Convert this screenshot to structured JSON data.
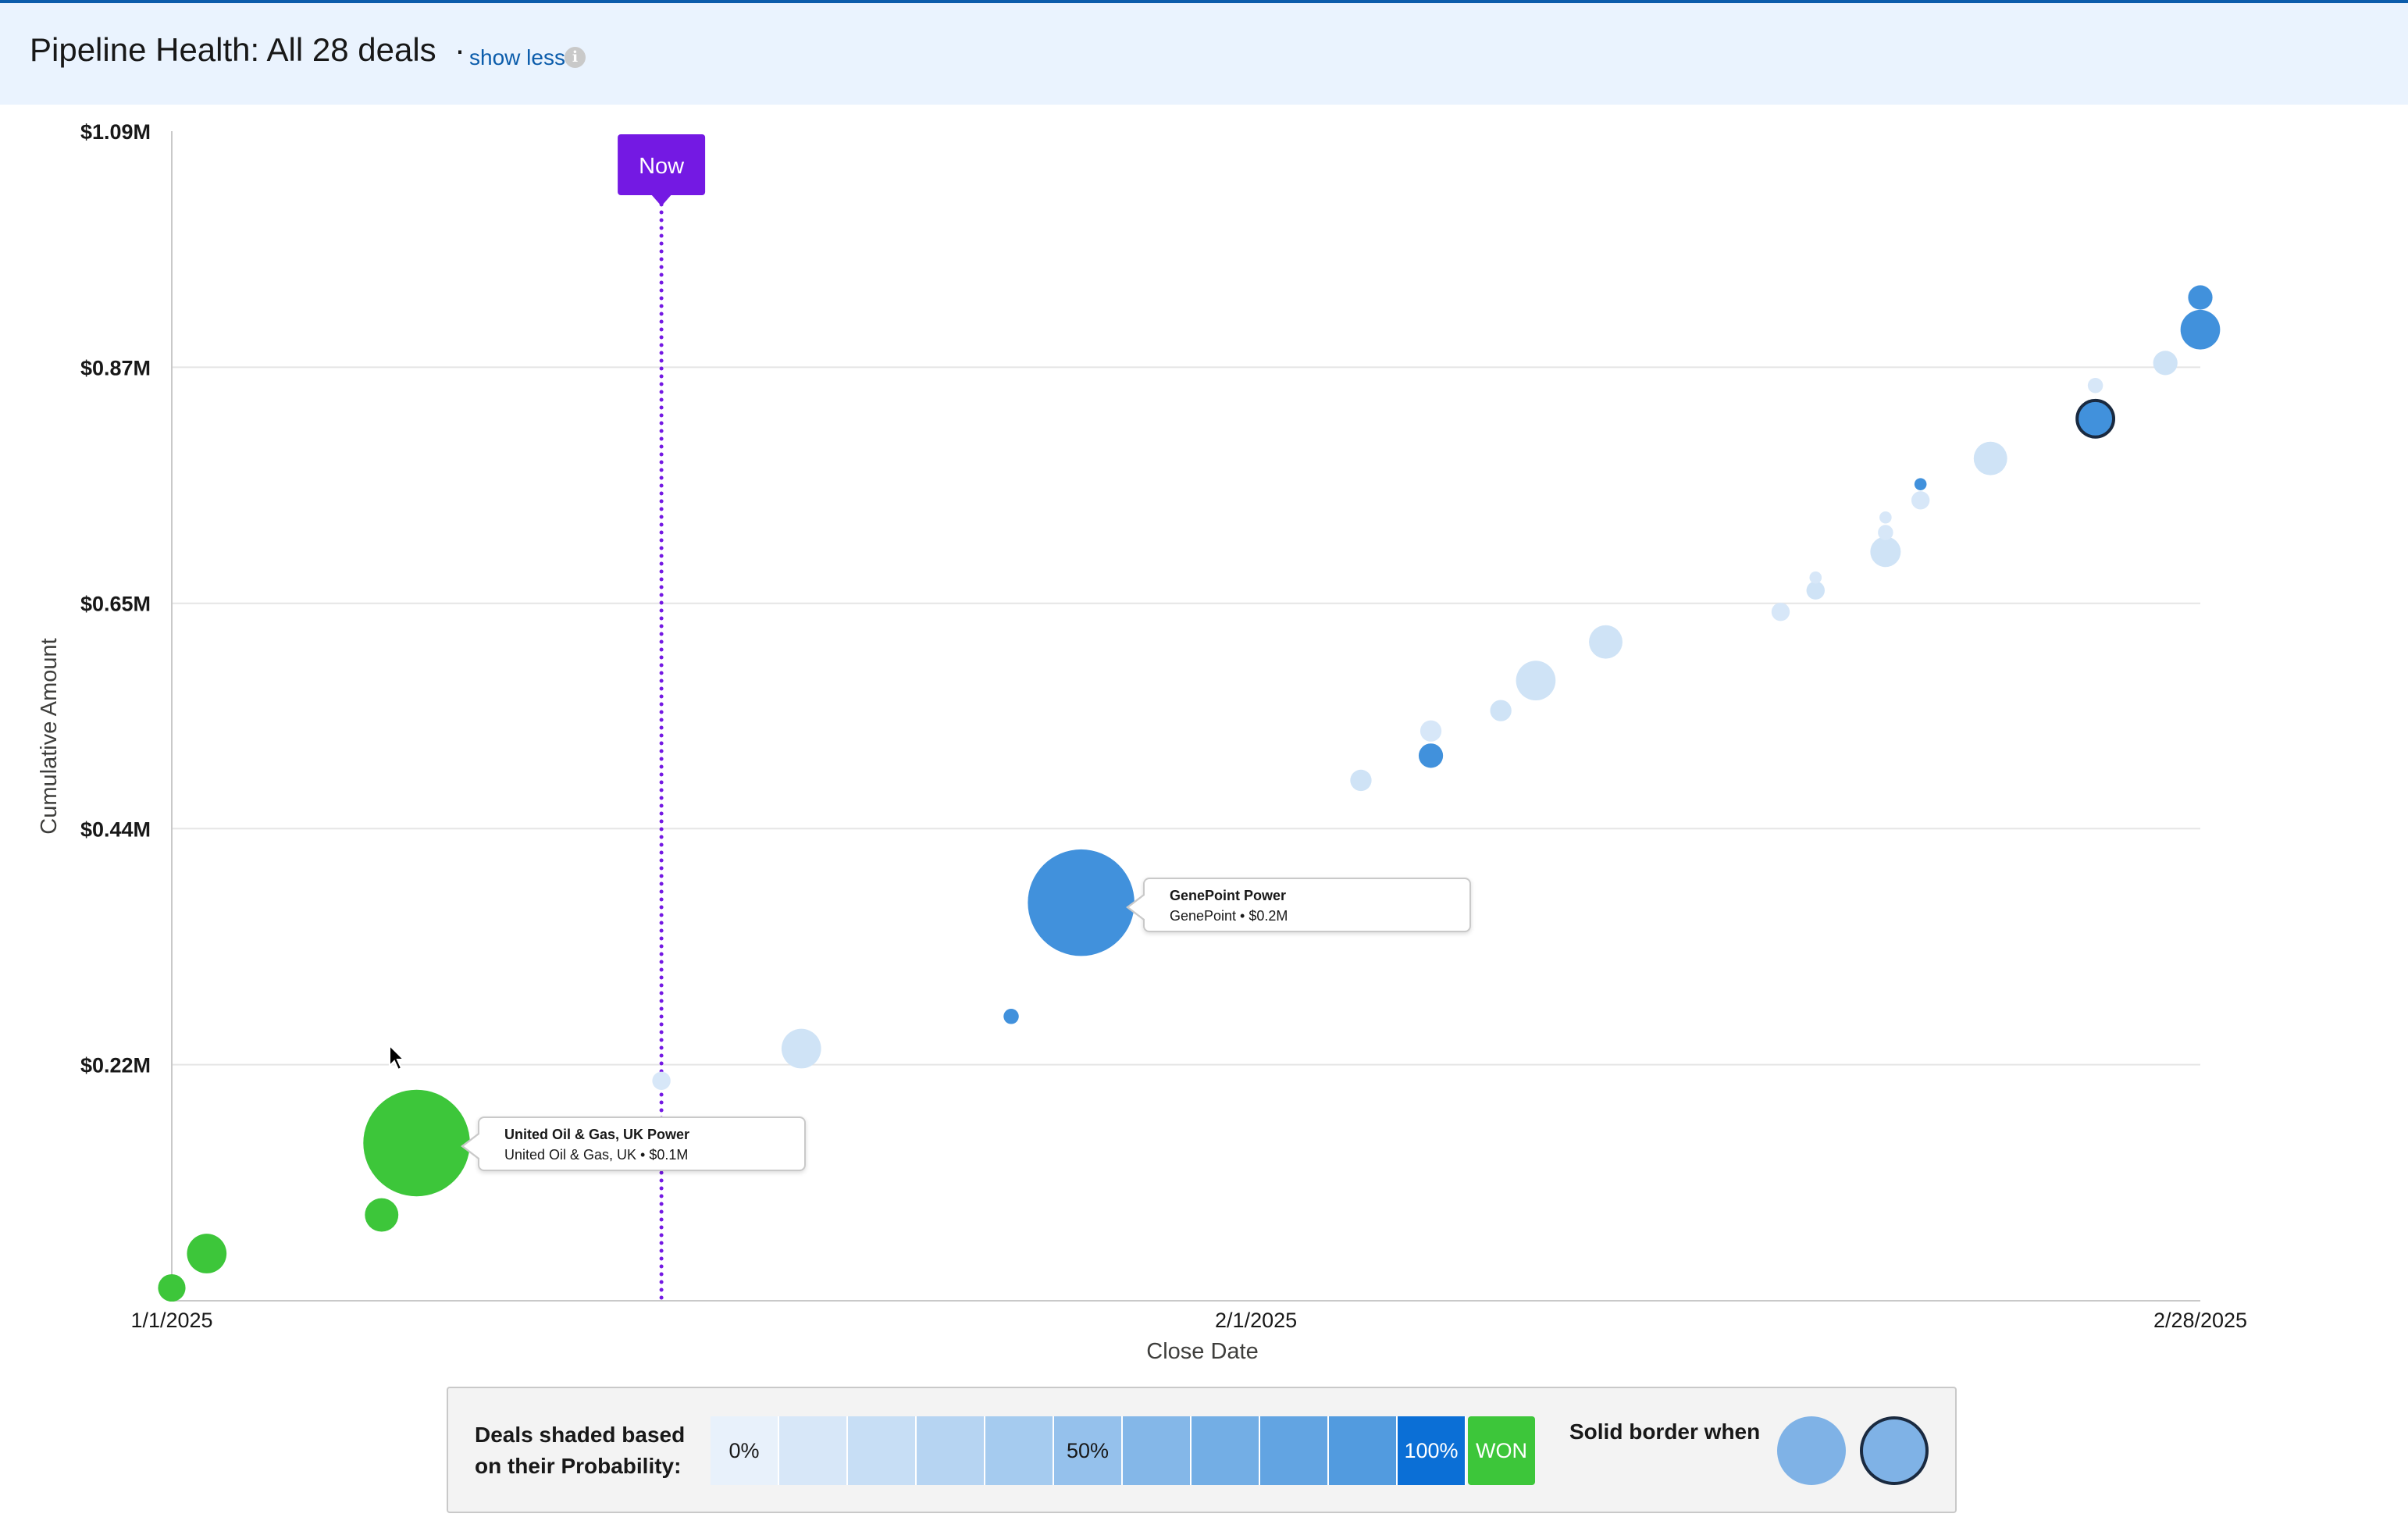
{
  "header": {
    "title": "Pipeline Health: All 28 deals",
    "separator": "·",
    "toggle_label": "show less",
    "info_icon": "info-icon"
  },
  "chart_data": {
    "type": "scatter",
    "xlabel": "Close Date",
    "ylabel": "Cumulative Amount",
    "x_ticks": [
      "1/1/2025",
      "2/1/2025",
      "2/28/2025"
    ],
    "y_ticks": [
      "$0.22M",
      "$0.44M",
      "$0.65M",
      "$0.87M",
      "$1.09M"
    ],
    "y_tick_values": [
      0.22,
      0.44,
      0.65,
      0.87,
      1.09
    ],
    "xlim": [
      "2025-01-01",
      "2025-02-28"
    ],
    "ylim": [
      0,
      1.09
    ],
    "grid": true,
    "now_label": "Now",
    "now_date": "2025-01-15",
    "colors": {
      "won": "#3dc63a",
      "open": "#4191dc",
      "now": "#7419e3",
      "selected_border": "#1a2a40"
    },
    "points": [
      {
        "x": "2025-01-01",
        "y": 0.012,
        "r": 9,
        "p": 1.0,
        "won": true
      },
      {
        "x": "2025-01-02",
        "y": 0.044,
        "r": 13,
        "p": 1.0,
        "won": true
      },
      {
        "x": "2025-01-07",
        "y": 0.08,
        "r": 11,
        "p": 1.0,
        "won": true
      },
      {
        "x": "2025-01-08",
        "y": 0.147,
        "r": 35,
        "p": 1.0,
        "won": true
      },
      {
        "x": "2025-01-15",
        "y": 0.205,
        "r": 6,
        "p": 0.1
      },
      {
        "x": "2025-01-19",
        "y": 0.235,
        "r": 13,
        "p": 0.15
      },
      {
        "x": "2025-01-25",
        "y": 0.265,
        "r": 5,
        "p": 1.0
      },
      {
        "x": "2025-01-27",
        "y": 0.371,
        "r": 35,
        "p": 1.0
      },
      {
        "x": "2025-02-04",
        "y": 0.485,
        "r": 7,
        "p": 0.15
      },
      {
        "x": "2025-02-06",
        "y": 0.508,
        "r": 8,
        "p": 1.0
      },
      {
        "x": "2025-02-06",
        "y": 0.531,
        "r": 7,
        "p": 0.1
      },
      {
        "x": "2025-02-08",
        "y": 0.55,
        "r": 7,
        "p": 0.15
      },
      {
        "x": "2025-02-09",
        "y": 0.578,
        "r": 13,
        "p": 0.15
      },
      {
        "x": "2025-02-11",
        "y": 0.614,
        "r": 11,
        "p": 0.15
      },
      {
        "x": "2025-02-16",
        "y": 0.642,
        "r": 6,
        "p": 0.1
      },
      {
        "x": "2025-02-17",
        "y": 0.662,
        "r": 6,
        "p": 0.15
      },
      {
        "x": "2025-02-17",
        "y": 0.674,
        "r": 4,
        "p": 0.1
      },
      {
        "x": "2025-02-19",
        "y": 0.698,
        "r": 10,
        "p": 0.15
      },
      {
        "x": "2025-02-19",
        "y": 0.716,
        "r": 5,
        "p": 0.1
      },
      {
        "x": "2025-02-19",
        "y": 0.73,
        "r": 4,
        "p": 0.1
      },
      {
        "x": "2025-02-20",
        "y": 0.746,
        "r": 6,
        "p": 0.1
      },
      {
        "x": "2025-02-20",
        "y": 0.761,
        "r": 4,
        "p": 1.0
      },
      {
        "x": "2025-02-22",
        "y": 0.785,
        "r": 11,
        "p": 0.15
      },
      {
        "x": "2025-02-25",
        "y": 0.822,
        "r": 12,
        "p": 1.0,
        "solid_border": true
      },
      {
        "x": "2025-02-25",
        "y": 0.853,
        "r": 5,
        "p": 0.1
      },
      {
        "x": "2025-02-27",
        "y": 0.874,
        "r": 8,
        "p": 0.15
      },
      {
        "x": "2025-02-28",
        "y": 0.905,
        "r": 13,
        "p": 1.0
      },
      {
        "x": "2025-02-28",
        "y": 0.935,
        "r": 8,
        "p": 1.0
      }
    ]
  },
  "tooltips": [
    {
      "title": "United Oil & Gas, UK Power",
      "sub": "United Oil & Gas, UK • $0.1M"
    },
    {
      "title": "GenePoint Power",
      "sub": "GenePoint • $0.2M"
    }
  ],
  "legend": {
    "label": "Deals shaded based\non their Probability:",
    "scale_labels": [
      "0%",
      "",
      "",
      "",
      "",
      "50%",
      "",
      "",
      "",
      "",
      "100%"
    ],
    "won_label": "WON",
    "border_label": "Solid border when"
  }
}
